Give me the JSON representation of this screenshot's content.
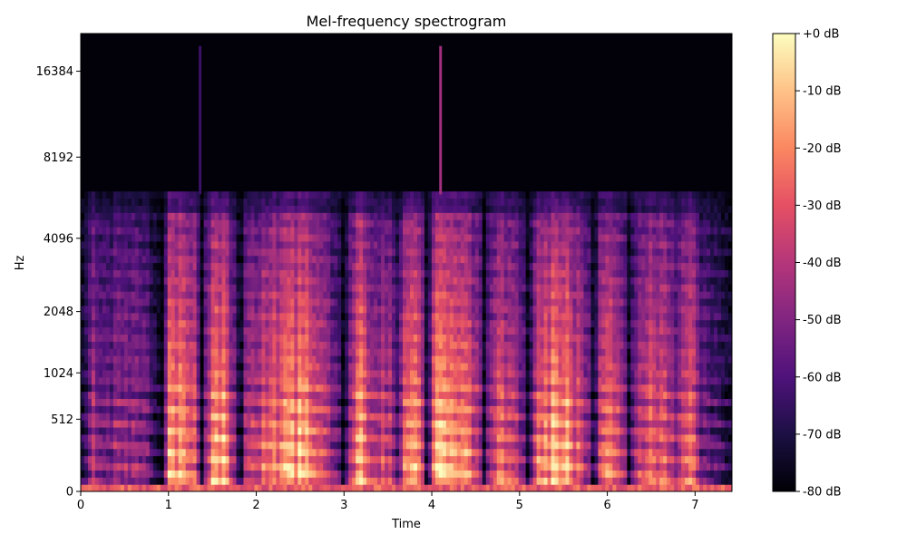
{
  "chart_data": {
    "type": "heatmap",
    "title": "Mel-frequency spectrogram",
    "xlabel": "Time",
    "ylabel": "Hz",
    "xlim": [
      0,
      7.42
    ],
    "x_ticks": [
      0,
      1,
      2,
      3,
      4,
      5,
      6,
      7
    ],
    "y_scale": "mel",
    "y_ticks": [
      {
        "label": "0",
        "hz": 0
      },
      {
        "label": "512",
        "hz": 512
      },
      {
        "label": "1024",
        "hz": 1024
      },
      {
        "label": "2048",
        "hz": 2048
      },
      {
        "label": "4096",
        "hz": 4096
      },
      {
        "label": "8192",
        "hz": 8192
      },
      {
        "label": "16384",
        "hz": 16384
      }
    ],
    "y_max_hz": 22050,
    "content_cutoff_hz": 6000,
    "colormap": "magma",
    "colorbar": {
      "range_db": [
        -80,
        0
      ],
      "ticks": [
        "+0 dB",
        "-10 dB",
        "-20 dB",
        "-30 dB",
        "-40 dB",
        "-50 dB",
        "-60 dB",
        "-70 dB",
        "-80 dB"
      ]
    },
    "energy_profile": [
      [
        0.0,
        0.05
      ],
      [
        0.1,
        0.35
      ],
      [
        0.15,
        0.55
      ],
      [
        0.2,
        0.4
      ],
      [
        0.5,
        0.42
      ],
      [
        0.75,
        0.4
      ],
      [
        0.85,
        0.15
      ],
      [
        0.93,
        0.05
      ],
      [
        1.0,
        0.85
      ],
      [
        1.15,
        0.8
      ],
      [
        1.3,
        0.65
      ],
      [
        1.38,
        0.15
      ],
      [
        1.45,
        0.6
      ],
      [
        1.55,
        0.9
      ],
      [
        1.65,
        0.85
      ],
      [
        1.75,
        0.4
      ],
      [
        1.82,
        0.15
      ],
      [
        1.9,
        0.6
      ],
      [
        2.1,
        0.65
      ],
      [
        2.3,
        0.75
      ],
      [
        2.5,
        0.85
      ],
      [
        2.7,
        0.75
      ],
      [
        2.9,
        0.4
      ],
      [
        3.0,
        0.1
      ],
      [
        3.1,
        0.7
      ],
      [
        3.2,
        0.85
      ],
      [
        3.35,
        0.5
      ],
      [
        3.5,
        0.6
      ],
      [
        3.6,
        0.3
      ],
      [
        3.7,
        0.7
      ],
      [
        3.85,
        0.85
      ],
      [
        3.95,
        0.2
      ],
      [
        4.05,
        0.85
      ],
      [
        4.2,
        0.9
      ],
      [
        4.35,
        0.75
      ],
      [
        4.5,
        0.6
      ],
      [
        4.6,
        0.2
      ],
      [
        4.7,
        0.65
      ],
      [
        4.85,
        0.7
      ],
      [
        5.0,
        0.45
      ],
      [
        5.1,
        0.2
      ],
      [
        5.2,
        0.75
      ],
      [
        5.35,
        0.85
      ],
      [
        5.55,
        0.8
      ],
      [
        5.75,
        0.5
      ],
      [
        5.85,
        0.2
      ],
      [
        5.95,
        0.75
      ],
      [
        6.15,
        0.65
      ],
      [
        6.25,
        0.3
      ],
      [
        6.35,
        0.6
      ],
      [
        6.6,
        0.7
      ],
      [
        6.8,
        0.45
      ],
      [
        6.95,
        0.7
      ],
      [
        7.05,
        0.4
      ],
      [
        7.15,
        0.3
      ],
      [
        7.3,
        0.2
      ],
      [
        7.42,
        0.1
      ]
    ],
    "silent_gaps": [
      0.93,
      1.38,
      1.82,
      3.0,
      3.95,
      4.6,
      5.1,
      5.85,
      6.25
    ],
    "narrow_events": [
      {
        "time": 1.36,
        "top_hz": 20000,
        "level": 0.2
      },
      {
        "time": 4.1,
        "top_hz": 20000,
        "level": 0.45
      }
    ]
  }
}
